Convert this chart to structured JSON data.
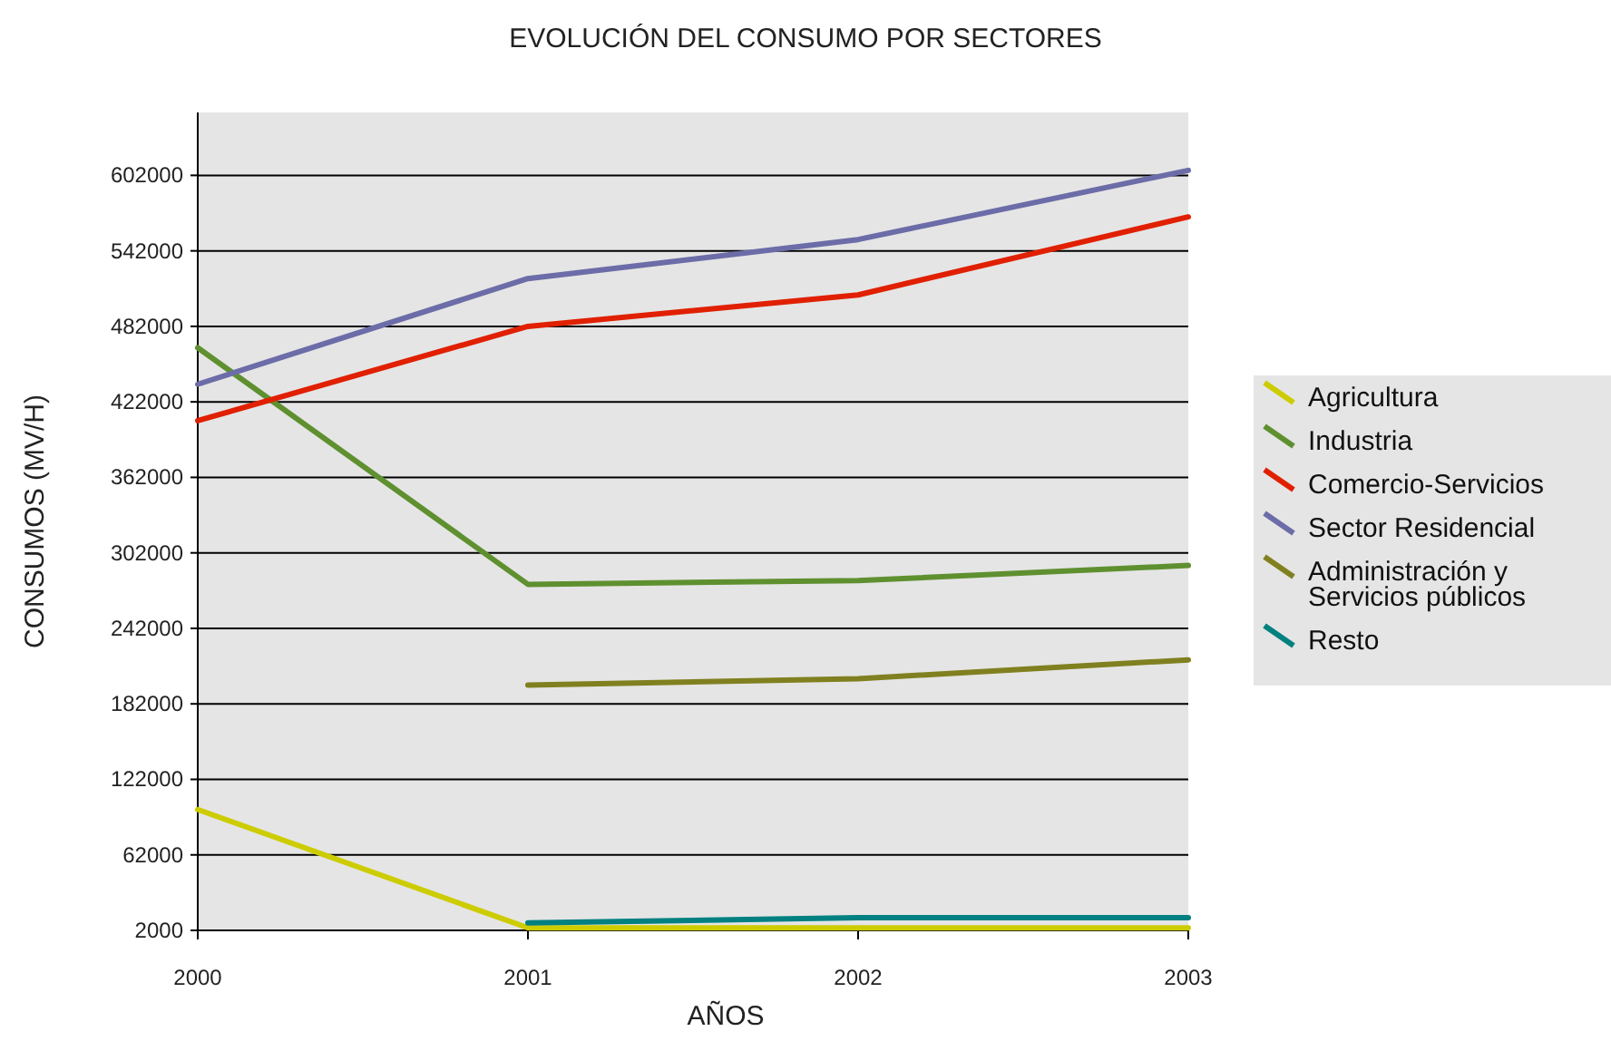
{
  "chart_data": {
    "type": "line",
    "title": "EVOLUCIÓN DEL CONSUMO POR SECTORES",
    "xlabel": "AÑOS",
    "ylabel": "CONSUMOS (MV/H)",
    "x": [
      2000,
      2001,
      2002,
      2003
    ],
    "xlim": [
      2000,
      2003
    ],
    "xticks": [
      2000,
      2001,
      2002,
      2003
    ],
    "ylim": [
      2000,
      652000
    ],
    "yticks": [
      2000,
      62000,
      122000,
      182000,
      242000,
      302000,
      362000,
      422000,
      482000,
      542000,
      602000
    ],
    "grid": "y",
    "legend": "right",
    "marker": "none",
    "series": [
      {
        "name": "Agricultura",
        "color": "#cccc00",
        "values": [
          98000,
          4000,
          4000,
          4000
        ]
      },
      {
        "name": "Industria",
        "color": "#5f9030",
        "values": [
          465000,
          277000,
          280000,
          292000
        ]
      },
      {
        "name": "Comercio-Servicios",
        "color": "#e02000",
        "values": [
          407000,
          482000,
          507000,
          569000
        ]
      },
      {
        "name": "Sector Residencial",
        "color": "#6c6ca8",
        "values": [
          436000,
          520000,
          551000,
          606000
        ]
      },
      {
        "name": "Administración y Servicios públicos",
        "color": "#808020",
        "values": [
          null,
          197000,
          202000,
          217000
        ]
      },
      {
        "name": "Resto",
        "color": "#008080",
        "values": [
          null,
          8000,
          12000,
          12000
        ]
      }
    ]
  }
}
